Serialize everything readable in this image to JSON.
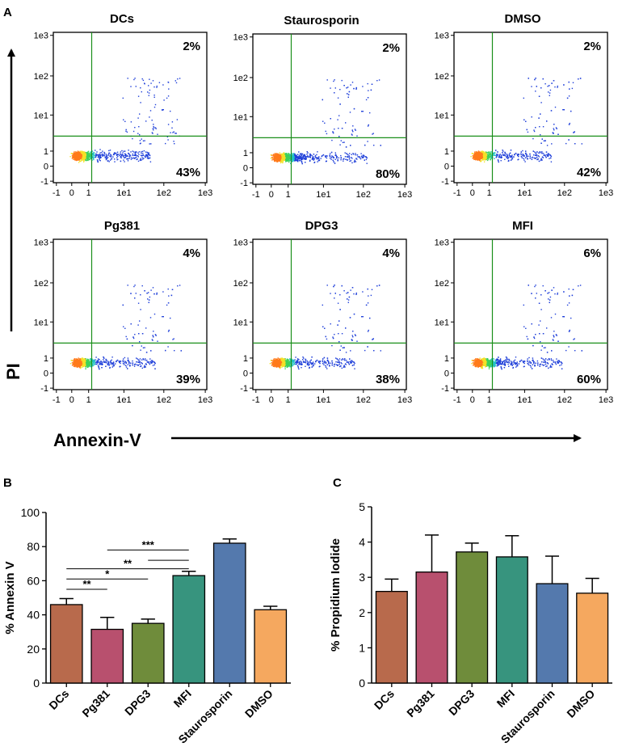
{
  "panels": {
    "a": "A",
    "b": "B",
    "c": "C"
  },
  "flow": {
    "y_axis_label": "PI",
    "x_axis_label": "Annexin-V",
    "x_ticks": [
      "-1",
      "0",
      "1",
      "1e1",
      "1e2",
      "1e3"
    ],
    "y_ticks": [
      "1e3",
      "1e2",
      "1e1",
      "1",
      "0",
      "-1"
    ],
    "plots": [
      {
        "title": "DCs",
        "upper_right": "2%",
        "lower_right": "43%",
        "spread": 0.15
      },
      {
        "title": "Staurosporin",
        "upper_right": "2%",
        "lower_right": "80%",
        "spread": 0.7
      },
      {
        "title": "DMSO",
        "upper_right": "2%",
        "lower_right": "42%",
        "spread": 0.15
      },
      {
        "title": "Pg381",
        "upper_right": "4%",
        "lower_right": "39%",
        "spread": 0.3
      },
      {
        "title": "DPG3",
        "upper_right": "4%",
        "lower_right": "38%",
        "spread": 0.3
      },
      {
        "title": "MFI",
        "upper_right": "6%",
        "lower_right": "60%",
        "spread": 0.5
      }
    ]
  },
  "chart_data": [
    {
      "type": "bar",
      "panel": "B",
      "ylabel": "% Annexin V",
      "ylim": [
        0,
        100
      ],
      "yticks": [
        "0",
        "20",
        "40",
        "60",
        "80",
        "100"
      ],
      "categories": [
        "DCs",
        "Pg381",
        "DPG3",
        "MFI",
        "Staurosporin",
        "DMSO"
      ],
      "values": [
        46,
        31.5,
        35,
        63,
        82,
        43
      ],
      "errors": [
        3.5,
        7,
        2.5,
        2.5,
        2.5,
        2
      ],
      "colors": [
        "#b86a4c",
        "#b8506e",
        "#6f8c3b",
        "#37947e",
        "#5479ad",
        "#f5a85f"
      ],
      "significance": [
        {
          "from": "DCs",
          "to": "Pg381",
          "label": "**"
        },
        {
          "from": "DCs",
          "to": "DPG3",
          "label": "*"
        },
        {
          "from": "DCs",
          "to": "MFI",
          "label": "**"
        },
        {
          "from": "DPG3",
          "to": "MFI",
          "label": ""
        },
        {
          "from": "Pg381",
          "to": "MFI",
          "label": "***"
        }
      ]
    },
    {
      "type": "bar",
      "panel": "C",
      "ylabel": "% Propidium Iodide",
      "ylim": [
        0,
        5
      ],
      "yticks": [
        "0",
        "1",
        "2",
        "3",
        "4",
        "5"
      ],
      "categories": [
        "DCs",
        "Pg381",
        "DPG3",
        "MFI",
        "Staurosporin",
        "DMSO"
      ],
      "values": [
        2.6,
        3.15,
        3.72,
        3.58,
        2.82,
        2.55
      ],
      "errors": [
        0.35,
        1.05,
        0.25,
        0.6,
        0.78,
        0.42
      ],
      "colors": [
        "#b86a4c",
        "#b8506e",
        "#6f8c3b",
        "#37947e",
        "#5479ad",
        "#f5a85f"
      ]
    }
  ]
}
